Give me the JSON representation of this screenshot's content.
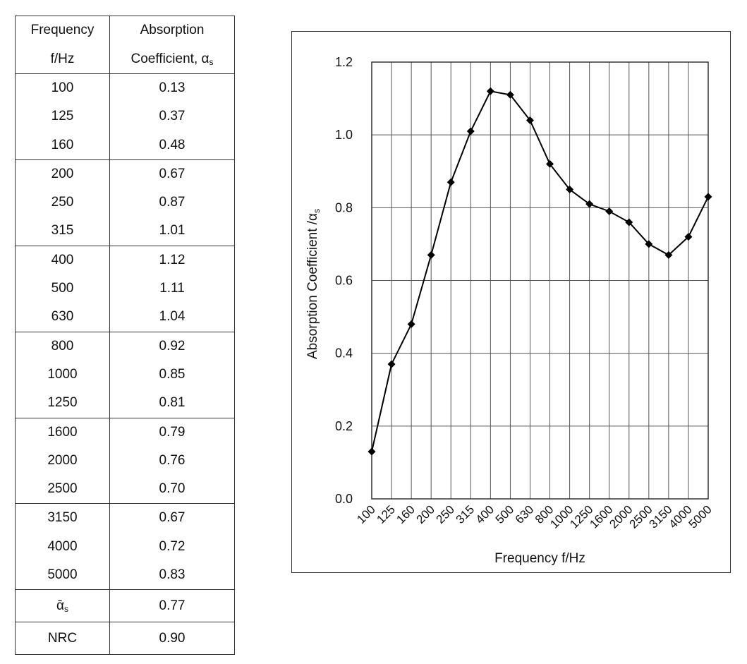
{
  "table": {
    "headers": {
      "frequency_line1": "Frequency",
      "frequency_line2": "f/Hz",
      "absorption_line1": "Absorption",
      "absorption_line2": "Coefficient, α",
      "absorption_sub": "s"
    },
    "groups": [
      [
        [
          "100",
          "0.13"
        ],
        [
          "125",
          "0.37"
        ],
        [
          "160",
          "0.48"
        ]
      ],
      [
        [
          "200",
          "0.67"
        ],
        [
          "250",
          "0.87"
        ],
        [
          "315",
          "1.01"
        ]
      ],
      [
        [
          "400",
          "1.12"
        ],
        [
          "500",
          "1.11"
        ],
        [
          "630",
          "1.04"
        ]
      ],
      [
        [
          "800",
          "0.92"
        ],
        [
          "1000",
          "0.85"
        ],
        [
          "1250",
          "0.81"
        ]
      ],
      [
        [
          "1600",
          "0.79"
        ],
        [
          "2000",
          "0.76"
        ],
        [
          "2500",
          "0.70"
        ]
      ],
      [
        [
          "3150",
          "0.67"
        ],
        [
          "4000",
          "0.72"
        ],
        [
          "5000",
          "0.83"
        ]
      ]
    ],
    "mean_label": "ᾱ",
    "mean_sub": "s",
    "mean_value": "0.77",
    "nrc_label": "NRC",
    "nrc_value": "0.90"
  },
  "chart_data": {
    "type": "line",
    "categories": [
      "100",
      "125",
      "160",
      "200",
      "250",
      "315",
      "400",
      "500",
      "630",
      "800",
      "1000",
      "1250",
      "1600",
      "2000",
      "2500",
      "3150",
      "4000",
      "5000"
    ],
    "values": [
      0.13,
      0.37,
      0.48,
      0.67,
      0.87,
      1.01,
      1.12,
      1.11,
      1.04,
      0.92,
      0.85,
      0.81,
      0.79,
      0.76,
      0.7,
      0.67,
      0.72,
      0.83
    ],
    "xlabel": "Frequency f/Hz",
    "ylabel": "Absorption Coefficient /α",
    "ylabel_sub": "s",
    "ylim": [
      0,
      1.2
    ],
    "yticks": [
      "0.0",
      "0.2",
      "0.4",
      "0.6",
      "0.8",
      "1.0",
      "1.2"
    ],
    "grid": true,
    "marker": "diamond",
    "line_color": "#000000"
  }
}
